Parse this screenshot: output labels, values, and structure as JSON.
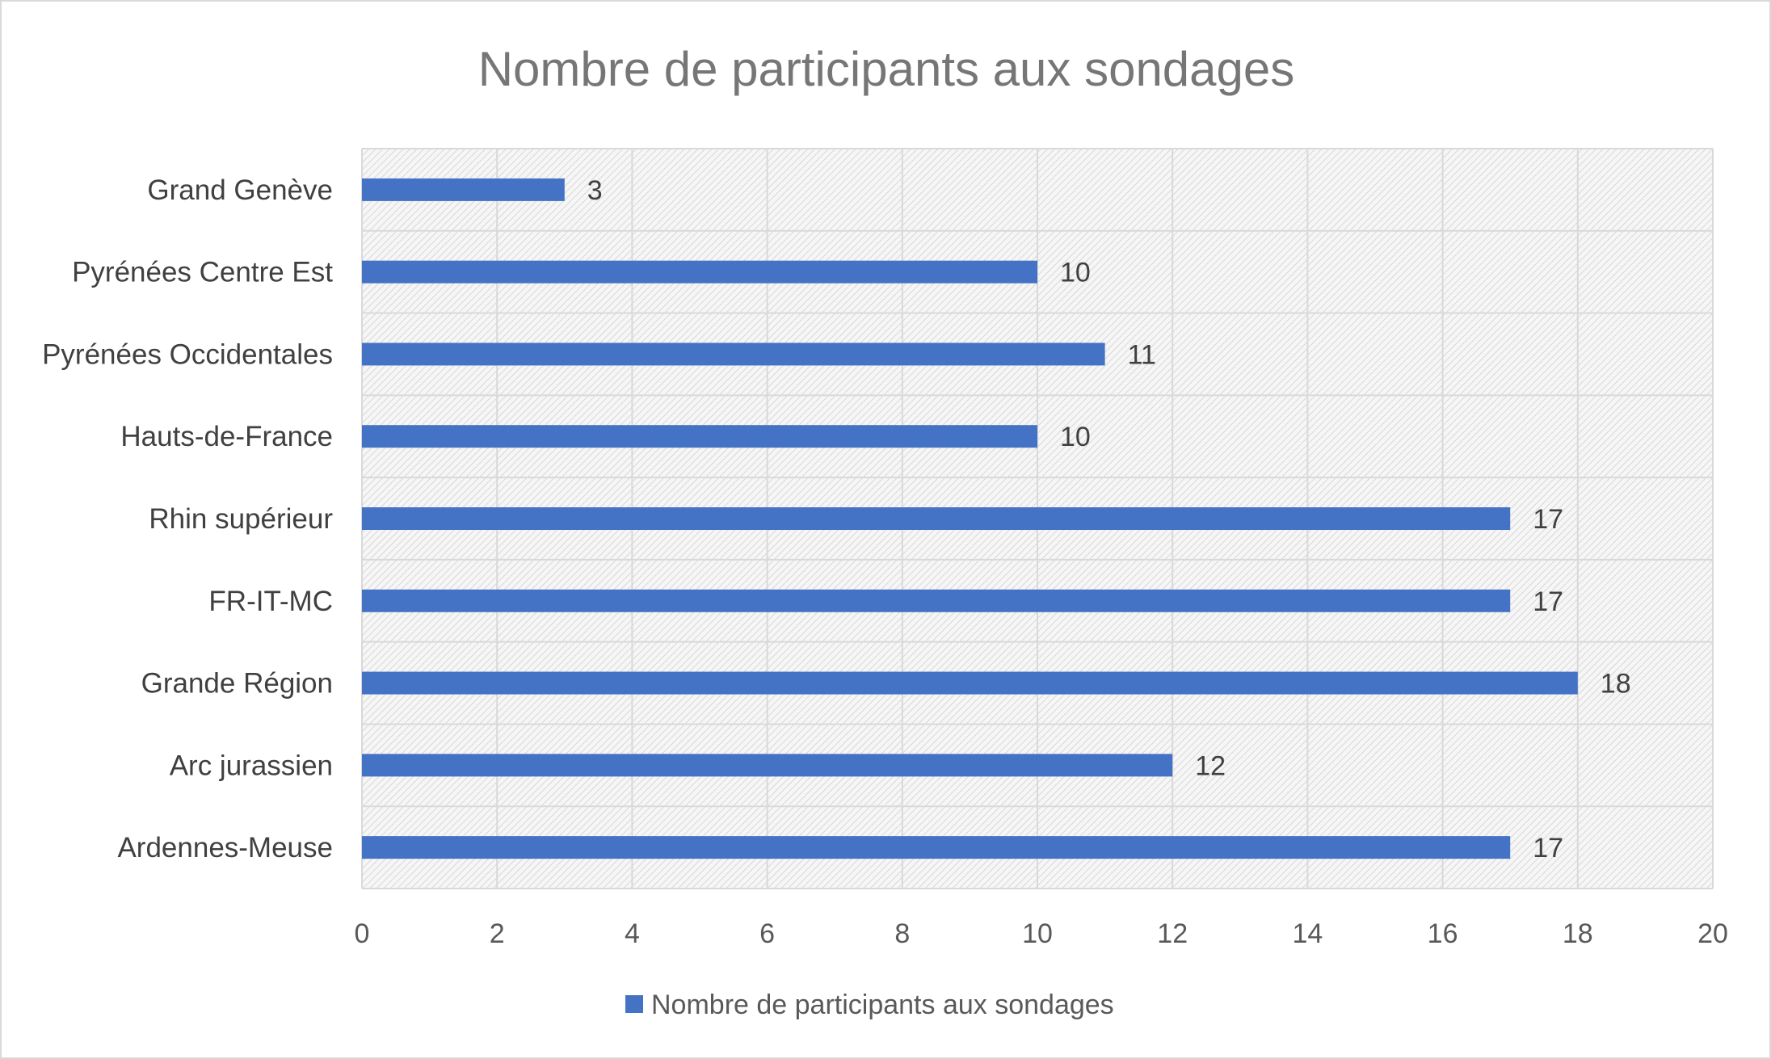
{
  "chart_data": {
    "type": "bar",
    "orientation": "horizontal",
    "title": "Nombre de participants aux sondages",
    "categories": [
      "Grand Genève",
      "Pyrénées Centre Est",
      "Pyrénées Occidentales",
      "Hauts-de-France",
      "Rhin supérieur",
      "FR-IT-MC",
      "Grande Région",
      "Arc jurassien",
      "Ardennes-Meuse"
    ],
    "series": [
      {
        "name": "Nombre de participants aux sondages",
        "values": [
          3,
          10,
          11,
          10,
          17,
          17,
          18,
          12,
          17
        ],
        "color": "#4472c4"
      }
    ],
    "xlim": [
      0,
      20
    ],
    "xticks": [
      0,
      2,
      4,
      6,
      8,
      10,
      12,
      14,
      16,
      18,
      20
    ],
    "xlabel": "",
    "ylabel": "",
    "grid": true,
    "plot_background": "hatched light gray",
    "data_labels": true,
    "legend_position": "bottom"
  }
}
